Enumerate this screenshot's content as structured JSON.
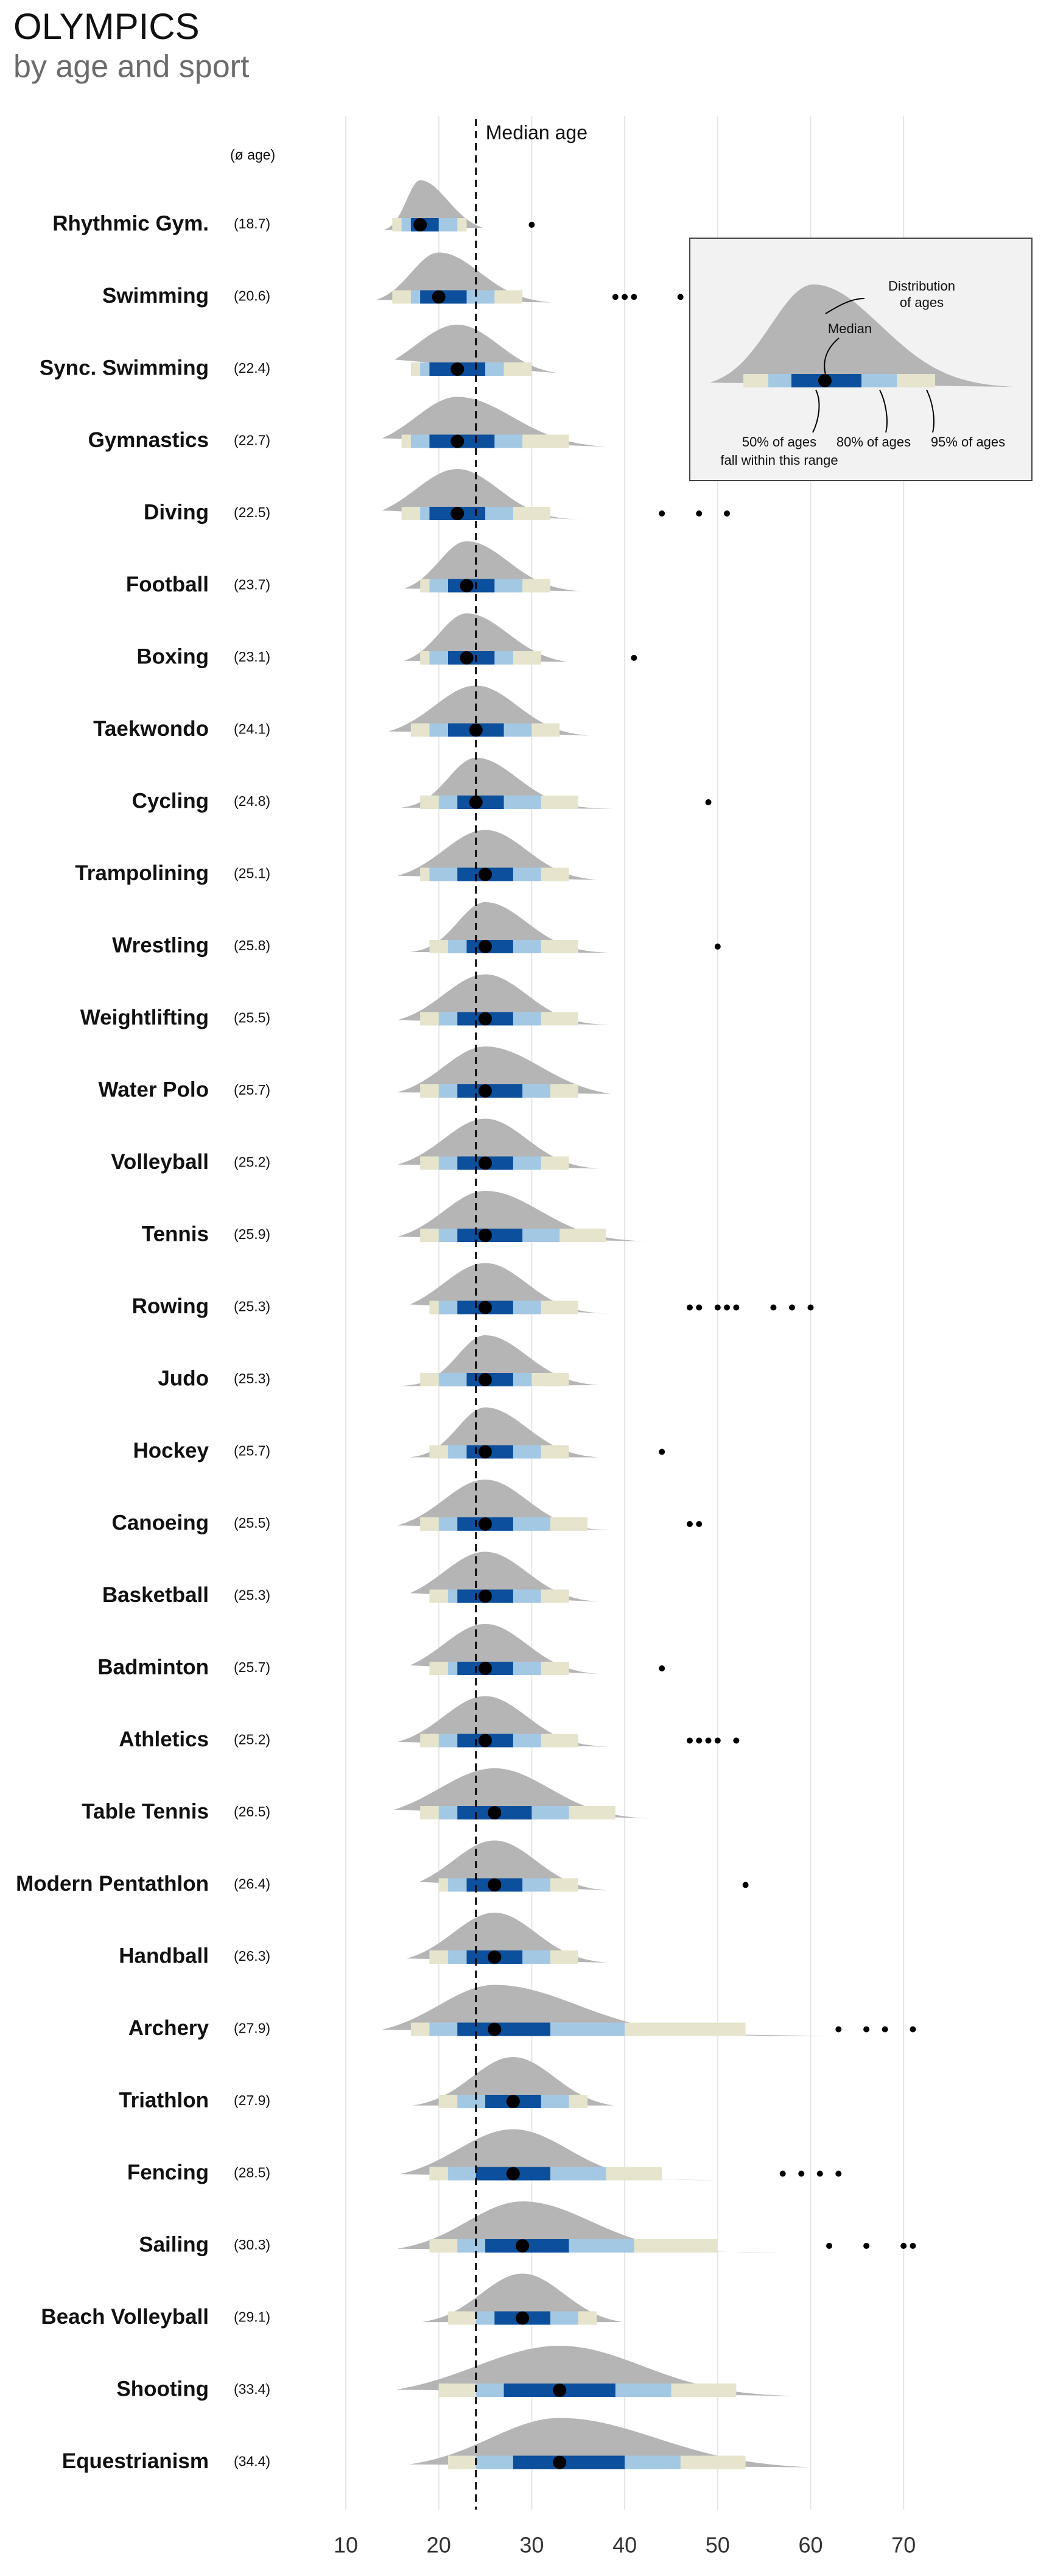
{
  "chart_data": {
    "type": "interval",
    "title": "OLYMPICS",
    "subtitle": "by age and sport",
    "mean_header": "(ø age)",
    "median_age": 24,
    "median_age_label": "Median age",
    "xlim": [
      5,
      78
    ],
    "xticks": [
      10,
      20,
      30,
      40,
      50,
      60,
      70
    ],
    "grid": true,
    "colors": {
      "density": "#b5b5b5",
      "p50": "#0c4f9c",
      "p80": "#a3c8e4",
      "p95": "#e6e4cc",
      "median": "#000000"
    },
    "legend": {
      "distribution": [
        "Distribution",
        "of ages"
      ],
      "median": "Median",
      "p50": [
        "50% of ages",
        "fall within this range"
      ],
      "p80": "80% of ages",
      "p95": "95% of ages"
    },
    "sports": [
      {
        "name": "Rhythmic Gym.",
        "mean_label": "(18.7)",
        "median": 18,
        "p50": [
          17,
          20
        ],
        "p80": [
          16,
          22
        ],
        "p95": [
          15,
          23
        ],
        "outliers": [
          30
        ]
      },
      {
        "name": "Swimming",
        "mean_label": "(20.6)",
        "median": 20,
        "p50": [
          18,
          23
        ],
        "p80": [
          17,
          26
        ],
        "p95": [
          15,
          29
        ],
        "outliers": [
          39,
          40,
          41,
          46
        ]
      },
      {
        "name": "Sync. Swimming",
        "mean_label": "(22.4)",
        "median": 22,
        "p50": [
          19,
          25
        ],
        "p80": [
          18,
          27
        ],
        "p95": [
          17,
          30
        ],
        "outliers": []
      },
      {
        "name": "Gymnastics",
        "mean_label": "(22.7)",
        "median": 22,
        "p50": [
          19,
          26
        ],
        "p80": [
          17,
          29
        ],
        "p95": [
          16,
          34
        ],
        "outliers": []
      },
      {
        "name": "Diving",
        "mean_label": "(22.5)",
        "median": 22,
        "p50": [
          19,
          25
        ],
        "p80": [
          18,
          28
        ],
        "p95": [
          16,
          32
        ],
        "outliers": [
          44,
          48,
          51
        ]
      },
      {
        "name": "Football",
        "mean_label": "(23.7)",
        "median": 23,
        "p50": [
          21,
          26
        ],
        "p80": [
          19,
          29
        ],
        "p95": [
          18,
          32
        ],
        "outliers": []
      },
      {
        "name": "Boxing",
        "mean_label": "(23.1)",
        "median": 23,
        "p50": [
          21,
          26
        ],
        "p80": [
          19,
          28
        ],
        "p95": [
          18,
          31
        ],
        "outliers": [
          41
        ]
      },
      {
        "name": "Taekwondo",
        "mean_label": "(24.1)",
        "median": 24,
        "p50": [
          21,
          27
        ],
        "p80": [
          19,
          30
        ],
        "p95": [
          17,
          33
        ],
        "outliers": []
      },
      {
        "name": "Cycling",
        "mean_label": "(24.8)",
        "median": 24,
        "p50": [
          22,
          27
        ],
        "p80": [
          20,
          31
        ],
        "p95": [
          18,
          35
        ],
        "outliers": [
          49
        ]
      },
      {
        "name": "Trampolining",
        "mean_label": "(25.1)",
        "median": 25,
        "p50": [
          22,
          28
        ],
        "p80": [
          19,
          31
        ],
        "p95": [
          18,
          34
        ],
        "outliers": []
      },
      {
        "name": "Wrestling",
        "mean_label": "(25.8)",
        "median": 25,
        "p50": [
          23,
          28
        ],
        "p80": [
          21,
          31
        ],
        "p95": [
          19,
          35
        ],
        "outliers": [
          50
        ]
      },
      {
        "name": "Weightlifting",
        "mean_label": "(25.5)",
        "median": 25,
        "p50": [
          22,
          28
        ],
        "p80": [
          20,
          31
        ],
        "p95": [
          18,
          35
        ],
        "outliers": []
      },
      {
        "name": "Water Polo",
        "mean_label": "(25.7)",
        "median": 25,
        "p50": [
          22,
          29
        ],
        "p80": [
          20,
          32
        ],
        "p95": [
          18,
          35
        ],
        "outliers": []
      },
      {
        "name": "Volleyball",
        "mean_label": "(25.2)",
        "median": 25,
        "p50": [
          22,
          28
        ],
        "p80": [
          20,
          31
        ],
        "p95": [
          18,
          34
        ],
        "outliers": []
      },
      {
        "name": "Tennis",
        "mean_label": "(25.9)",
        "median": 25,
        "p50": [
          22,
          29
        ],
        "p80": [
          20,
          33
        ],
        "p95": [
          18,
          38
        ],
        "outliers": []
      },
      {
        "name": "Rowing",
        "mean_label": "(25.3)",
        "median": 25,
        "p50": [
          22,
          28
        ],
        "p80": [
          20,
          31
        ],
        "p95": [
          19,
          35
        ],
        "outliers": [
          47,
          48,
          50,
          51,
          52,
          56,
          58,
          60
        ]
      },
      {
        "name": "Judo",
        "mean_label": "(25.3)",
        "median": 25,
        "p50": [
          23,
          28
        ],
        "p80": [
          20,
          30
        ],
        "p95": [
          18,
          34
        ],
        "outliers": []
      },
      {
        "name": "Hockey",
        "mean_label": "(25.7)",
        "median": 25,
        "p50": [
          23,
          28
        ],
        "p80": [
          21,
          31
        ],
        "p95": [
          19,
          34
        ],
        "outliers": [
          44
        ]
      },
      {
        "name": "Canoeing",
        "mean_label": "(25.5)",
        "median": 25,
        "p50": [
          22,
          28
        ],
        "p80": [
          20,
          32
        ],
        "p95": [
          18,
          36
        ],
        "outliers": [
          47,
          48
        ]
      },
      {
        "name": "Basketball",
        "mean_label": "(25.3)",
        "median": 25,
        "p50": [
          22,
          28
        ],
        "p80": [
          21,
          31
        ],
        "p95": [
          19,
          34
        ],
        "outliers": []
      },
      {
        "name": "Badminton",
        "mean_label": "(25.7)",
        "median": 25,
        "p50": [
          22,
          28
        ],
        "p80": [
          21,
          31
        ],
        "p95": [
          19,
          34
        ],
        "outliers": [
          44
        ]
      },
      {
        "name": "Athletics",
        "mean_label": "(25.2)",
        "median": 25,
        "p50": [
          22,
          28
        ],
        "p80": [
          20,
          31
        ],
        "p95": [
          18,
          35
        ],
        "outliers": [
          47,
          48,
          49,
          50,
          52
        ]
      },
      {
        "name": "Table Tennis",
        "mean_label": "(26.5)",
        "median": 26,
        "p50": [
          22,
          30
        ],
        "p80": [
          20,
          34
        ],
        "p95": [
          18,
          39
        ],
        "outliers": []
      },
      {
        "name": "Modern Pentathlon",
        "mean_label": "(26.4)",
        "median": 26,
        "p50": [
          23,
          29
        ],
        "p80": [
          21,
          32
        ],
        "p95": [
          20,
          35
        ],
        "outliers": [
          53
        ]
      },
      {
        "name": "Handball",
        "mean_label": "(26.3)",
        "median": 26,
        "p50": [
          23,
          29
        ],
        "p80": [
          21,
          32
        ],
        "p95": [
          19,
          35
        ],
        "outliers": []
      },
      {
        "name": "Archery",
        "mean_label": "(27.9)",
        "median": 26,
        "p50": [
          22,
          32
        ],
        "p80": [
          19,
          40
        ],
        "p95": [
          17,
          53
        ],
        "outliers": [
          63,
          66,
          68,
          71
        ]
      },
      {
        "name": "Triathlon",
        "mean_label": "(27.9)",
        "median": 28,
        "p50": [
          25,
          31
        ],
        "p80": [
          22,
          34
        ],
        "p95": [
          20,
          36
        ],
        "outliers": []
      },
      {
        "name": "Fencing",
        "mean_label": "(28.5)",
        "median": 28,
        "p50": [
          24,
          32
        ],
        "p80": [
          21,
          38
        ],
        "p95": [
          19,
          44
        ],
        "outliers": [
          57,
          59,
          61,
          63
        ]
      },
      {
        "name": "Sailing",
        "mean_label": "(30.3)",
        "median": 29,
        "p50": [
          25,
          34
        ],
        "p80": [
          22,
          41
        ],
        "p95": [
          19,
          50
        ],
        "outliers": [
          62,
          66,
          70,
          71
        ]
      },
      {
        "name": "Beach Volleyball",
        "mean_label": "(29.1)",
        "median": 29,
        "p50": [
          26,
          32
        ],
        "p80": [
          24,
          35
        ],
        "p95": [
          21,
          37
        ],
        "outliers": []
      },
      {
        "name": "Shooting",
        "mean_label": "(33.4)",
        "median": 33,
        "p50": [
          27,
          39
        ],
        "p80": [
          24,
          45
        ],
        "p95": [
          20,
          52
        ],
        "outliers": []
      },
      {
        "name": "Equestrianism",
        "mean_label": "(34.4)",
        "median": 33,
        "p50": [
          28,
          40
        ],
        "p80": [
          24,
          46
        ],
        "p95": [
          21,
          53
        ],
        "outliers": []
      }
    ]
  }
}
